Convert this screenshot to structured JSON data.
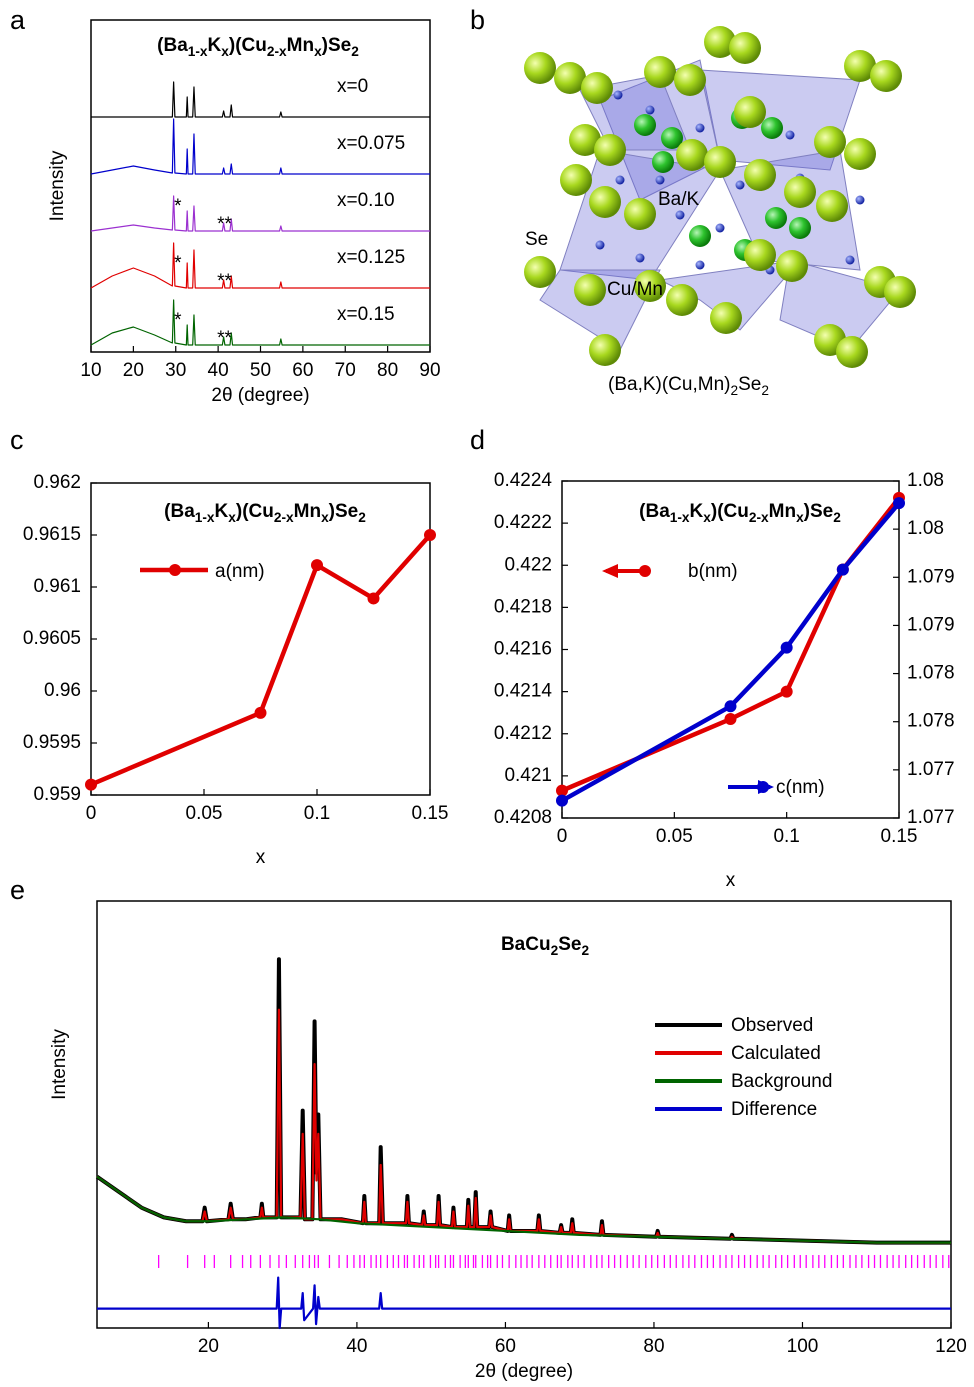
{
  "panels": [
    "a",
    "b",
    "c",
    "d",
    "e"
  ],
  "structure": {
    "labels": [
      "Se",
      "Ba/K",
      "Cu/Mn"
    ],
    "formula": [
      "(Ba,K)(Cu,Mn)",
      "2",
      "Se",
      "2"
    ]
  },
  "chart_data": [
    {
      "type": "line",
      "title": [
        "(Ba",
        "1-x",
        "K",
        "x",
        ")(Cu",
        "2-x",
        "Mn",
        "x",
        ")Se",
        "2"
      ],
      "xlabel": "2θ (degree)",
      "ylabel": "Intensity",
      "xlim": [
        10,
        90
      ],
      "xticks": [
        10,
        20,
        30,
        40,
        50,
        60,
        70,
        80,
        90
      ],
      "x": [
        10,
        15,
        20,
        25,
        29.2,
        29.5,
        29.8,
        32.5,
        32.7,
        32.9,
        34,
        34.3,
        34.6,
        41,
        41.3,
        41.6,
        42.8,
        43.1,
        43.4,
        50,
        54.5,
        54.8,
        55.1,
        60,
        70,
        80,
        90
      ],
      "series": [
        {
          "name": "x=0",
          "color": "#000000",
          "values": [
            0,
            0,
            0,
            0,
            0,
            35,
            0,
            0,
            20,
            0,
            0,
            30,
            0,
            0,
            6,
            0,
            0,
            12,
            0,
            0,
            0,
            5,
            0,
            0,
            0,
            0,
            0
          ]
        },
        {
          "name": "x=0.075",
          "color": "#0000cc",
          "values": [
            0,
            4,
            8,
            4,
            1,
            55,
            1,
            0,
            25,
            0,
            0,
            40,
            0,
            0,
            6,
            0,
            0,
            10,
            0,
            0,
            0,
            6,
            0,
            0,
            0,
            0,
            0
          ]
        },
        {
          "name": "x=0.10",
          "color": "#9b30d0",
          "values": [
            0,
            3,
            6,
            3,
            1,
            35,
            1,
            0,
            20,
            0,
            0,
            25,
            0,
            0,
            8,
            0,
            0,
            12,
            0,
            0,
            0,
            5,
            0,
            0,
            0,
            0,
            0
          ]
        },
        {
          "name": "x=0.125",
          "color": "#e00000",
          "values": [
            0,
            12,
            20,
            12,
            2,
            45,
            2,
            0,
            25,
            0,
            0,
            38,
            0,
            0,
            8,
            0,
            0,
            12,
            0,
            0,
            0,
            6,
            0,
            0,
            0,
            0,
            0
          ]
        },
        {
          "name": "x=0.15",
          "color": "#006400",
          "values": [
            0,
            12,
            18,
            10,
            2,
            45,
            2,
            0,
            20,
            0,
            0,
            30,
            0,
            0,
            8,
            0,
            0,
            12,
            0,
            0,
            0,
            6,
            0,
            0,
            0,
            0,
            0
          ]
        }
      ],
      "annotations": [
        {
          "text": "*",
          "x": 30.5,
          "series": 2
        },
        {
          "text": "**",
          "x": 41.5,
          "series": 2
        },
        {
          "text": "*",
          "x": 30.5,
          "series": 3
        },
        {
          "text": "**",
          "x": 41.5,
          "series": 3
        },
        {
          "text": "*",
          "x": 30.5,
          "series": 4
        },
        {
          "text": "**",
          "x": 41.5,
          "series": 4
        }
      ]
    },
    {
      "type": "line",
      "title": [
        "(Ba",
        "1-x",
        "K",
        "x",
        ")(Cu",
        "2-x",
        "Mn",
        "x",
        ")Se",
        "2"
      ],
      "xlabel": "x",
      "xlim": [
        0,
        0.15
      ],
      "xticks": [
        0,
        0.05,
        0.1,
        0.15
      ],
      "ylim": [
        0.959,
        0.962
      ],
      "yticks": [
        0.959,
        0.9595,
        0.96,
        0.9605,
        0.961,
        0.9615,
        0.962
      ],
      "x": [
        0,
        0.075,
        0.1,
        0.125,
        0.15
      ],
      "markers": true,
      "series": [
        {
          "name": "a(nm)",
          "color": "#e00000",
          "values": [
            0.9591,
            0.95979,
            0.96121,
            0.96089,
            0.9615
          ]
        }
      ]
    },
    {
      "type": "line",
      "title": [
        "(Ba",
        "1-x",
        "K",
        "x",
        ")(Cu",
        "2-x",
        "Mn",
        "x",
        ")Se",
        "2"
      ],
      "xlabel": "x",
      "xlim": [
        0,
        0.15
      ],
      "xticks": [
        0,
        0.05,
        0.1,
        0.15
      ],
      "ylim": [
        0.4208,
        0.4224
      ],
      "yticks": [
        0.4208,
        0.421,
        0.4212,
        0.4214,
        0.4216,
        0.4218,
        0.422,
        0.4222,
        0.4224
      ],
      "y2lim": [
        1.0768,
        1.0803
      ],
      "y2ticks": [
        {
          "value": 1.0768,
          "label": "1.077"
        },
        {
          "value": 1.0773,
          "label": "1.077"
        },
        {
          "value": 1.0778,
          "label": "1.078"
        },
        {
          "value": 1.0783,
          "label": "1.078"
        },
        {
          "value": 1.0788,
          "label": "1.079"
        },
        {
          "value": 1.0793,
          "label": "1.079"
        },
        {
          "value": 1.0798,
          "label": "1.08"
        },
        {
          "value": 1.0803,
          "label": "1.08"
        }
      ],
      "x": [
        0,
        0.075,
        0.1,
        0.125,
        0.15
      ],
      "markers": true,
      "series": [
        {
          "name": "b(nm)",
          "color": "#e00000",
          "values": [
            0.42093,
            0.42127,
            0.4214,
            0.42198,
            0.42232
          ]
        },
        {
          "name": "c(nm)",
          "color": "#0000cc",
          "axis": "y2",
          "values": [
            1.07698,
            1.07796,
            1.07857,
            1.07938,
            1.08007
          ]
        }
      ]
    },
    {
      "type": "line",
      "title": [
        "BaCu",
        "2",
        "Se",
        "2"
      ],
      "xlabel": "2θ (degree)",
      "ylabel": "Intensity",
      "xlim": [
        5,
        120
      ],
      "xticks": [
        20,
        40,
        60,
        80,
        100,
        120
      ],
      "ylim": [
        -10,
        100
      ],
      "x": [
        5,
        8,
        11,
        14,
        17,
        19.2,
        19.5,
        19.8,
        22.7,
        23,
        23.3,
        25,
        27,
        27.2,
        27.4,
        29.2,
        29.5,
        29.8,
        32.4,
        32.7,
        33,
        34,
        34.3,
        34.55,
        34.8,
        35.1,
        38,
        40.8,
        41,
        41.2,
        43,
        43.2,
        43.5,
        46.6,
        46.8,
        47,
        48.8,
        49,
        49.2,
        50.8,
        51,
        51.2,
        52.8,
        53,
        53.2,
        54.8,
        55,
        55.2,
        55.8,
        56,
        56.2,
        57.8,
        58,
        58.2,
        60.3,
        60.5,
        60.7,
        64.3,
        64.5,
        64.7,
        67.3,
        67.5,
        67.7,
        68.8,
        69,
        69.2,
        72.8,
        73,
        73.2,
        80.3,
        80.5,
        80.7,
        90.3,
        90.5,
        90.7,
        100,
        110,
        120
      ],
      "series": [
        {
          "name": "Observed",
          "color": "#000000",
          "values": [
            29,
            25,
            21,
            18.5,
            17.5,
            17.5,
            21,
            17.5,
            18,
            22,
            18,
            18,
            18.5,
            22,
            18.5,
            18.5,
            85,
            18.5,
            18.5,
            46,
            18,
            18,
            69,
            30,
            45,
            18,
            18,
            17,
            24,
            17,
            17,
            36.6,
            17,
            17,
            24,
            17,
            16.5,
            20,
            16.5,
            16.5,
            24,
            16.5,
            16,
            21,
            16,
            16,
            23,
            16,
            16,
            25,
            16,
            16,
            20,
            16,
            15,
            19,
            15,
            15,
            19,
            15,
            14.5,
            16.5,
            14.5,
            14.5,
            18,
            14.5,
            14,
            17.5,
            14,
            13.5,
            15,
            13.5,
            13,
            14,
            13,
            12.5,
            12,
            12
          ]
        },
        {
          "name": "Calculated",
          "color": "#e00000",
          "values": [
            29,
            25,
            21,
            18.5,
            17.5,
            17.5,
            20,
            17.5,
            18,
            21,
            18,
            18,
            18.5,
            21,
            18.5,
            18.5,
            72,
            18.5,
            18.5,
            40,
            18,
            18,
            58,
            28,
            40,
            18,
            18,
            17,
            22.5,
            17,
            17,
            32,
            17,
            17,
            22.5,
            17,
            16.5,
            19,
            16.5,
            16.5,
            22.5,
            16.5,
            16,
            20,
            16,
            16,
            21.5,
            16,
            16,
            23.5,
            16,
            16,
            19,
            16,
            15,
            18,
            15,
            15,
            18,
            15,
            14.5,
            16,
            14.5,
            14.5,
            17,
            14.5,
            14,
            16.5,
            14,
            13.5,
            14.5,
            13.5,
            13,
            13.5,
            13,
            12.5,
            12,
            12
          ]
        },
        {
          "name": "Background",
          "color": "#006400",
          "x": [
            5,
            8,
            11,
            14,
            17,
            20,
            25,
            30,
            35,
            40,
            50,
            60,
            70,
            80,
            90,
            100,
            110,
            120
          ],
          "values": [
            29,
            25,
            21,
            18.5,
            17.5,
            17.5,
            18,
            18.5,
            18,
            17,
            16,
            15,
            14,
            13.5,
            13,
            12.5,
            12,
            12
          ]
        },
        {
          "name": "Difference",
          "color": "#0000cc",
          "x": [
            5,
            29.2,
            29.4,
            29.6,
            29.8,
            32.5,
            32.7,
            32.9,
            34.1,
            34.3,
            34.5,
            34.8,
            35,
            43,
            43.2,
            43.4,
            120
          ],
          "values": [
            -5,
            -5,
            3,
            -10,
            -5,
            -5,
            -1,
            -8,
            -5,
            1,
            -9,
            -2,
            -5,
            -5,
            -1,
            -5,
            -5
          ]
        }
      ],
      "bragg_color": "#ff00ff",
      "bragg_positions": [
        13.3,
        17.2,
        19.5,
        20.8,
        23.0,
        24.6,
        25.7,
        27.0,
        28.3,
        29.5,
        30.5,
        31.7,
        32.7,
        33.6,
        34.3,
        34.8,
        36.3,
        37.6,
        38.7,
        39.6,
        40.4,
        41.0,
        41.9,
        42.6,
        43.2,
        44.1,
        44.9,
        45.6,
        46.4,
        46.8,
        47.7,
        48.4,
        49.0,
        49.9,
        50.6,
        51.0,
        51.9,
        52.6,
        53.0,
        53.9,
        54.6,
        55.0,
        55.7,
        56.0,
        56.9,
        57.6,
        58.0,
        58.9,
        59.6,
        60.5,
        61.4,
        62.1,
        62.9,
        63.6,
        64.5,
        65.3,
        66.1,
        67.0,
        67.5,
        68.4,
        69.0,
        69.8,
        70.6,
        71.5,
        72.3,
        73.0,
        73.9,
        74.7,
        75.5,
        76.4,
        77.2,
        78.0,
        78.9,
        79.7,
        80.5,
        81.4,
        82.2,
        83.0,
        83.9,
        84.7,
        85.5,
        86.4,
        87.2,
        88.0,
        88.9,
        89.7,
        90.5,
        91.4,
        92.2,
        93.0,
        93.9,
        94.7,
        95.5,
        96.4,
        97.2,
        98.0,
        98.9,
        99.7,
        100.5,
        101.4,
        102.2,
        103.0,
        103.9,
        104.7,
        105.5,
        106.4,
        107.2,
        108.0,
        108.9,
        109.7,
        110.5,
        111.4,
        112.2,
        113.0,
        113.9,
        114.7,
        115.5,
        116.4,
        117.2,
        118.0,
        118.9,
        119.7
      ]
    }
  ]
}
